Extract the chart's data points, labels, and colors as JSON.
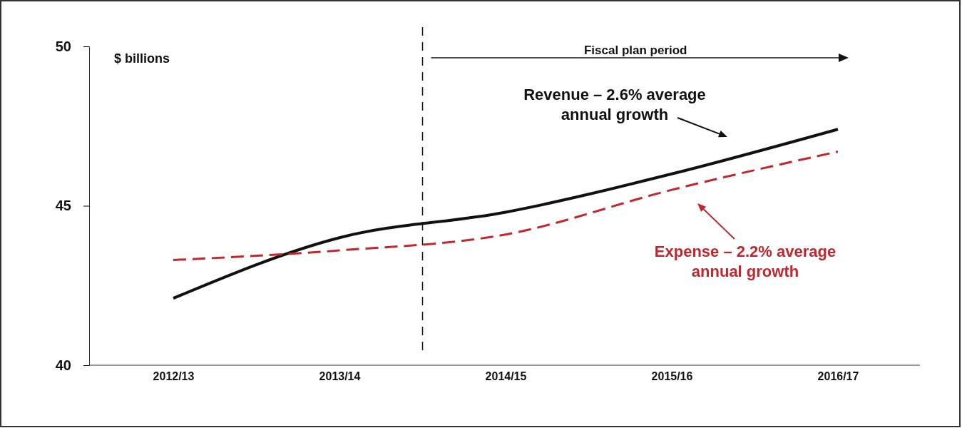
{
  "chart_data": {
    "type": "line",
    "ylabel": "$ billions",
    "categories": [
      "2012/13",
      "2013/14",
      "2014/15",
      "2015/16",
      "2016/17"
    ],
    "series": [
      {
        "color": "#111111",
        "values": [
          42.1,
          44.0,
          44.8,
          46.0,
          47.4
        ],
        "line_style": "solid"
      },
      {
        "color": "#c1272d",
        "values": [
          43.3,
          43.6,
          44.1,
          45.5,
          46.7
        ],
        "line_style": "dashed"
      }
    ],
    "ylim": [
      40,
      50
    ],
    "yticks": [
      40,
      45,
      50
    ],
    "grid": false,
    "marker": "none",
    "annotations": [
      "Fiscal plan period",
      "Revenue – 2.6% average annual growth",
      "Expense – 2.2% average annual growth"
    ]
  }
}
